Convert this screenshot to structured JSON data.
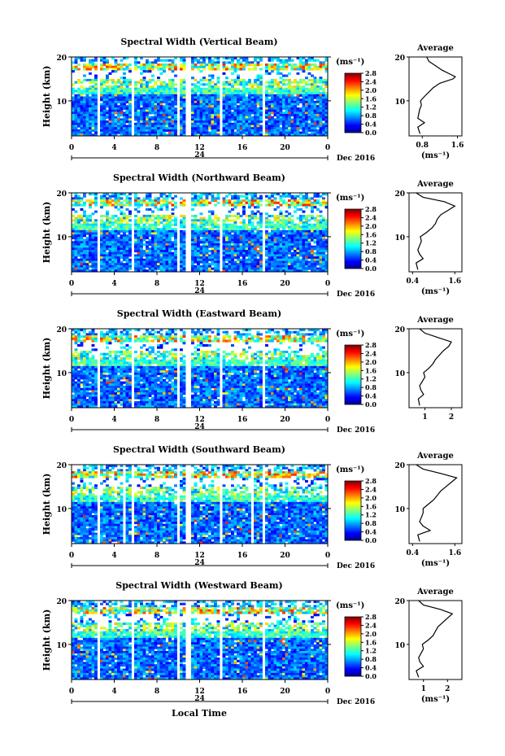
{
  "figure": {
    "xlabel": "Local Time",
    "date_label": "Dec 2016",
    "day_label": "24",
    "unit_label": "(ms⁻¹)",
    "avg_title": "Average",
    "height_label": "Height (km)"
  },
  "chart_data": [
    {
      "type": "heatmap",
      "title": "Spectral Width (Vertical Beam)",
      "xlabel": "Local Time",
      "ylabel": "Height (km)",
      "x_ticks": [
        "0",
        "4",
        "8",
        "12",
        "16",
        "20",
        "0"
      ],
      "xlim": [
        0,
        24
      ],
      "y_ticks": [
        "20",
        "10"
      ],
      "ylim": [
        2,
        20
      ],
      "colorbar": {
        "ticks": [
          "2.8",
          "2.4",
          "2.0",
          "1.6",
          "1.2",
          "0.8",
          "0.4",
          "0.0"
        ],
        "range": [
          0,
          2.8
        ]
      },
      "data_gaps_hours": [
        [
          2.3,
          2.7
        ],
        [
          5.7,
          5.9
        ],
        [
          9.8,
          10.1
        ],
        [
          10.7,
          11.1
        ],
        [
          13.9,
          14.1
        ],
        [
          17.8,
          18.0
        ]
      ],
      "average_profile": {
        "xlabel": "(ms⁻¹)",
        "x_ticks": [
          "0.8",
          "1.6"
        ],
        "xlim": [
          0.5,
          1.7
        ],
        "y_ticks": [
          "20",
          "10"
        ],
        "height": [
          2.5,
          4,
          5,
          6,
          7,
          8,
          9,
          10,
          11,
          12,
          13,
          14,
          15,
          15.5,
          16,
          17,
          18,
          19,
          20
        ],
        "value": [
          0.75,
          0.7,
          0.85,
          0.7,
          0.72,
          0.74,
          0.78,
          0.76,
          0.85,
          0.95,
          1.05,
          1.2,
          1.5,
          1.55,
          1.45,
          1.25,
          1.1,
          0.95,
          0.9
        ]
      }
    },
    {
      "type": "heatmap",
      "title": "Spectral Width (Northward Beam)",
      "xlabel": "Local Time",
      "ylabel": "Height (km)",
      "x_ticks": [
        "0",
        "4",
        "8",
        "12",
        "16",
        "20",
        "0"
      ],
      "xlim": [
        0,
        24
      ],
      "y_ticks": [
        "20",
        "10"
      ],
      "ylim": [
        2,
        20
      ],
      "colorbar": {
        "ticks": [
          "2.8",
          "2.4",
          "2.0",
          "1.6",
          "1.2",
          "0.8",
          "0.4",
          "0.0"
        ],
        "range": [
          0,
          2.8
        ]
      },
      "data_gaps_hours": [
        [
          2.3,
          2.7
        ],
        [
          5.7,
          5.9
        ],
        [
          9.8,
          10.1
        ],
        [
          10.7,
          11.1
        ],
        [
          13.9,
          14.1
        ],
        [
          17.8,
          18.0
        ]
      ],
      "average_profile": {
        "xlabel": "(ms⁻¹)",
        "x_ticks": [
          "0.4",
          "1.6"
        ],
        "xlim": [
          0.3,
          1.8
        ],
        "y_ticks": [
          "20",
          "10"
        ],
        "height": [
          2.5,
          4,
          5,
          6,
          7,
          8,
          9,
          10,
          11,
          12,
          13,
          14,
          15,
          16,
          17,
          18,
          19,
          20
        ],
        "value": [
          0.55,
          0.5,
          0.7,
          0.6,
          0.55,
          0.6,
          0.65,
          0.62,
          0.8,
          0.95,
          1.05,
          1.1,
          1.2,
          1.4,
          1.6,
          1.3,
          0.7,
          0.5
        ]
      }
    },
    {
      "type": "heatmap",
      "title": "Spectral Width (Eastward Beam)",
      "xlabel": "Local Time",
      "ylabel": "Height (km)",
      "x_ticks": [
        "0",
        "4",
        "8",
        "12",
        "16",
        "20",
        "0"
      ],
      "xlim": [
        0,
        24
      ],
      "y_ticks": [
        "20",
        "10"
      ],
      "ylim": [
        2,
        20
      ],
      "colorbar": {
        "ticks": [
          "2.8",
          "2.4",
          "2.0",
          "1.6",
          "1.2",
          "0.8",
          "0.4",
          "0.0"
        ],
        "range": [
          0,
          2.8
        ]
      },
      "data_gaps_hours": [
        [
          2.3,
          2.7
        ],
        [
          5.7,
          5.9
        ],
        [
          9.8,
          10.1
        ],
        [
          10.7,
          11.1
        ],
        [
          13.9,
          14.1
        ],
        [
          17.8,
          18.0
        ]
      ],
      "average_profile": {
        "xlabel": "",
        "x_ticks": [
          "1",
          "2"
        ],
        "xlim": [
          0.4,
          2.4
        ],
        "y_ticks": [
          "20",
          "10"
        ],
        "height": [
          2.5,
          4,
          5,
          6,
          7,
          8,
          9,
          10,
          11,
          12,
          13,
          14,
          15,
          16,
          17,
          18,
          19,
          20
        ],
        "value": [
          0.8,
          0.75,
          0.95,
          0.85,
          0.8,
          0.9,
          1.0,
          0.95,
          1.15,
          1.3,
          1.4,
          1.55,
          1.7,
          1.9,
          2.0,
          1.5,
          1.0,
          0.8
        ]
      }
    },
    {
      "type": "heatmap",
      "title": "Spectral Width (Southward Beam)",
      "xlabel": "Local Time",
      "ylabel": "Height (km)",
      "x_ticks": [
        "0",
        "4",
        "8",
        "12",
        "16",
        "20",
        "0"
      ],
      "xlim": [
        0,
        24
      ],
      "y_ticks": [
        "20",
        "10"
      ],
      "ylim": [
        2,
        20
      ],
      "colorbar": {
        "ticks": [
          "2.8",
          "2.4",
          "2.0",
          "1.6",
          "1.2",
          "0.8",
          "0.4",
          "0.0"
        ],
        "range": [
          0,
          2.8
        ]
      },
      "data_gaps_hours": [
        [
          2.3,
          2.7
        ],
        [
          4.9,
          5.1
        ],
        [
          5.7,
          5.9
        ],
        [
          9.8,
          10.1
        ],
        [
          10.7,
          11.1
        ],
        [
          13.9,
          14.1
        ],
        [
          16.9,
          17.1
        ],
        [
          17.8,
          18.0
        ]
      ],
      "average_profile": {
        "xlabel": "(ms⁻¹)",
        "x_ticks": [
          "0.4",
          "1.6"
        ],
        "xlim": [
          0.3,
          1.8
        ],
        "y_ticks": [
          "20",
          "10"
        ],
        "height": [
          2.5,
          4,
          5,
          6,
          7,
          8,
          9,
          10,
          11,
          12,
          13,
          14,
          15,
          16,
          17,
          18,
          19,
          20
        ],
        "value": [
          0.6,
          0.55,
          0.9,
          0.7,
          0.6,
          0.65,
          0.7,
          0.7,
          0.85,
          1.0,
          1.1,
          1.2,
          1.35,
          1.5,
          1.65,
          1.2,
          0.7,
          0.5
        ]
      }
    },
    {
      "type": "heatmap",
      "title": "Spectral Width (Westward Beam)",
      "xlabel": "Local Time",
      "ylabel": "Height (km)",
      "x_ticks": [
        "0",
        "4",
        "8",
        "12",
        "16",
        "20",
        "0"
      ],
      "xlim": [
        0,
        24
      ],
      "y_ticks": [
        "20",
        "10"
      ],
      "ylim": [
        2,
        20
      ],
      "colorbar": {
        "ticks": [
          "2.8",
          "2.4",
          "2.0",
          "1.6",
          "1.2",
          "0.8",
          "0.4",
          "0.0"
        ],
        "range": [
          0,
          2.8
        ]
      },
      "data_gaps_hours": [
        [
          2.3,
          2.7
        ],
        [
          5.7,
          5.9
        ],
        [
          9.8,
          10.1
        ],
        [
          10.7,
          11.1
        ],
        [
          13.9,
          14.1
        ],
        [
          17.8,
          18.0
        ]
      ],
      "average_profile": {
        "xlabel": "(ms⁻¹)",
        "x_ticks": [
          "1",
          "2"
        ],
        "xlim": [
          0.4,
          2.6
        ],
        "y_ticks": [
          "20",
          "10"
        ],
        "height": [
          2.5,
          4,
          5,
          6,
          7,
          8,
          9,
          10,
          11,
          12,
          13,
          14,
          15,
          16,
          17,
          18,
          19,
          20
        ],
        "value": [
          0.8,
          0.7,
          1.0,
          0.85,
          0.8,
          0.9,
          1.0,
          0.95,
          1.2,
          1.4,
          1.5,
          1.6,
          1.8,
          2.0,
          2.2,
          1.7,
          1.0,
          0.8
        ]
      }
    }
  ]
}
